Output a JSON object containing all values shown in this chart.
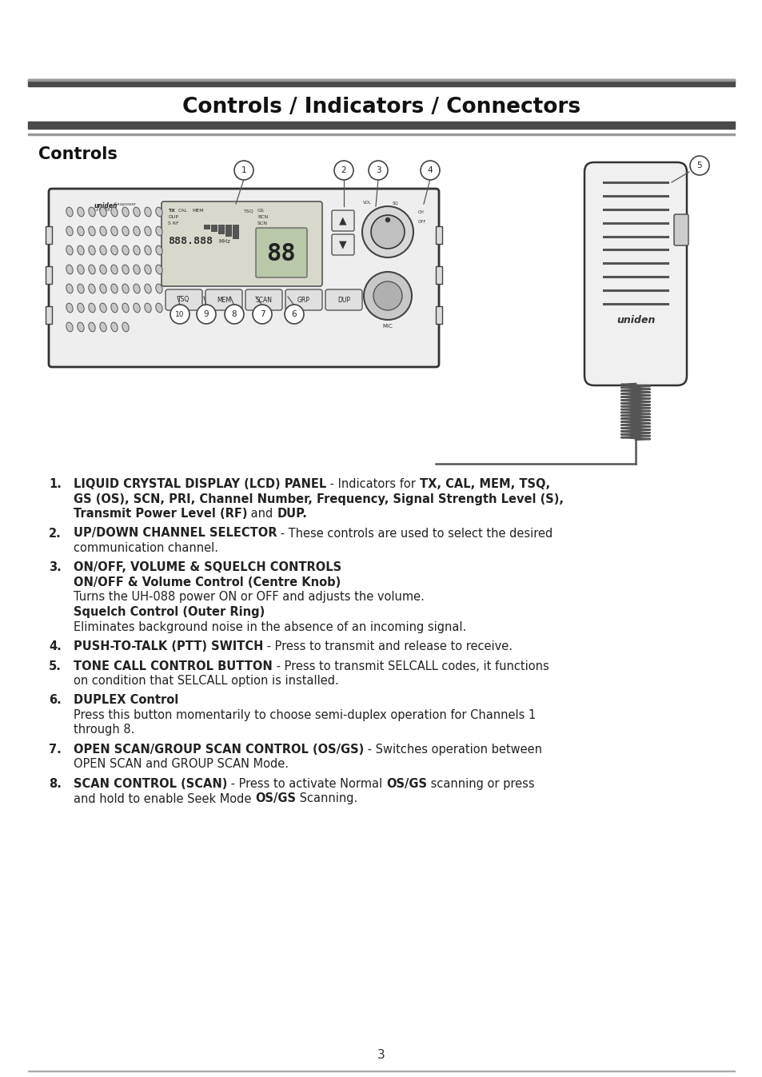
{
  "page_bg": "#ffffff",
  "header_title": "Controls / Indicators / Connectors",
  "section_title": "Controls",
  "page_number": "3",
  "text_color": "#222222",
  "body_fontsize": 10.5,
  "items": [
    {
      "num": "1.",
      "lines": [
        {
          "parts": [
            [
              "LIQUID CRYSTAL DISPLAY (LCD) PANEL",
              true
            ],
            [
              " - Indicators for ",
              false
            ],
            [
              "TX, CAL, MEM, TSQ,",
              true
            ]
          ]
        },
        {
          "parts": [
            [
              "GS (OS), SCN, PRI, Channel Number, Frequency, Signal Strength Level (S),",
              true
            ]
          ]
        },
        {
          "parts": [
            [
              "Transmit Power Level (RF)",
              true
            ],
            [
              " and ",
              false
            ],
            [
              "DUP.",
              true
            ]
          ]
        }
      ]
    },
    {
      "num": "2.",
      "lines": [
        {
          "parts": [
            [
              "UP/DOWN CHANNEL SELECTOR",
              true
            ],
            [
              " - These controls are used to select the desired",
              false
            ]
          ]
        },
        {
          "parts": [
            [
              "communication channel.",
              false
            ]
          ]
        }
      ]
    },
    {
      "num": "3.",
      "lines": [
        {
          "parts": [
            [
              "ON/OFF, VOLUME & SQUELCH CONTROLS",
              true
            ]
          ]
        },
        {
          "parts": [
            [
              "ON/OFF & Volume Control (Centre Knob)",
              true
            ]
          ]
        },
        {
          "parts": [
            [
              "Turns the UH-088 power ON or OFF and adjusts the volume.",
              false
            ]
          ]
        },
        {
          "parts": [
            [
              "Squelch Control (Outer Ring)",
              true
            ]
          ]
        },
        {
          "parts": [
            [
              "Eliminates background noise in the absence of an incoming signal.",
              false
            ]
          ]
        }
      ]
    },
    {
      "num": "4.",
      "lines": [
        {
          "parts": [
            [
              "PUSH-TO-TALK (PTT) SWITCH",
              true
            ],
            [
              " - Press to transmit and release to receive.",
              false
            ]
          ]
        }
      ]
    },
    {
      "num": "5.",
      "lines": [
        {
          "parts": [
            [
              "TONE CALL CONTROL BUTTON",
              true
            ],
            [
              " - Press to transmit SELCALL codes, it functions",
              false
            ]
          ]
        },
        {
          "parts": [
            [
              "on condition that SELCALL option is installed.",
              false
            ]
          ]
        }
      ]
    },
    {
      "num": "6.",
      "lines": [
        {
          "parts": [
            [
              "DUPLEX Control",
              true
            ]
          ]
        },
        {
          "parts": [
            [
              "Press this button momentarily to choose semi-duplex operation for Channels 1",
              false
            ]
          ]
        },
        {
          "parts": [
            [
              "through 8.",
              false
            ]
          ]
        }
      ]
    },
    {
      "num": "7.",
      "lines": [
        {
          "parts": [
            [
              "OPEN SCAN/GROUP SCAN CONTROL (OS/GS)",
              true
            ],
            [
              " - Switches operation between",
              false
            ]
          ]
        },
        {
          "parts": [
            [
              "OPEN SCAN and GROUP SCAN Mode.",
              false
            ]
          ]
        }
      ]
    },
    {
      "num": "8.",
      "lines": [
        {
          "parts": [
            [
              "SCAN CONTROL (SCAN)",
              true
            ],
            [
              " - Press to activate Normal ",
              false
            ],
            [
              "OS/GS",
              true
            ],
            [
              " scanning or press",
              false
            ]
          ]
        },
        {
          "parts": [
            [
              "and hold to enable Seek Mode ",
              false
            ],
            [
              "OS/GS",
              true
            ],
            [
              " Scanning.",
              false
            ]
          ]
        }
      ]
    }
  ]
}
